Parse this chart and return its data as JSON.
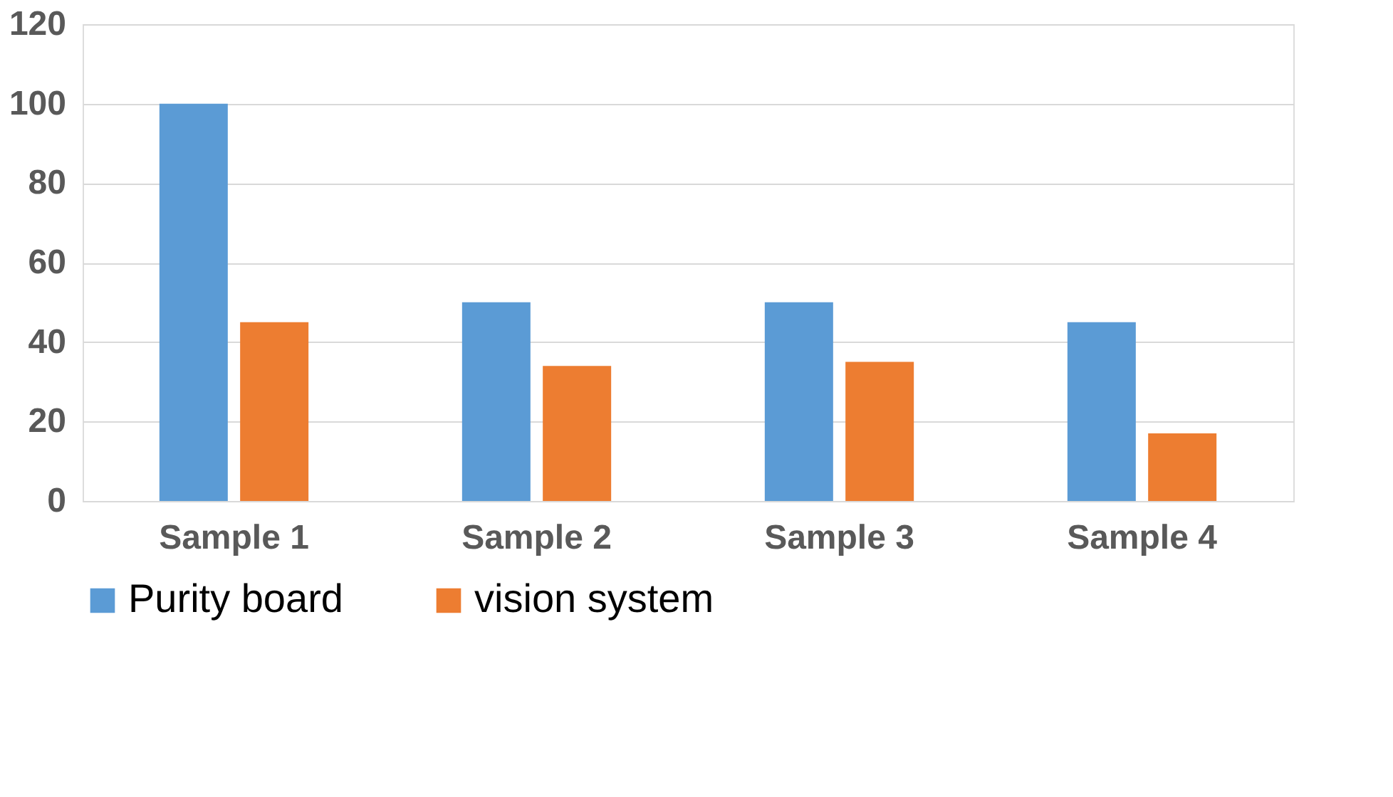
{
  "chart_data": {
    "type": "bar",
    "categories": [
      "Sample 1",
      "Sample 2",
      "Sample 3",
      "Sample 4"
    ],
    "series": [
      {
        "name": "Purity board",
        "color": "#5b9bd5",
        "values": [
          100,
          50,
          50,
          45
        ]
      },
      {
        "name": "vision system",
        "color": "#ed7d31",
        "values": [
          45,
          34,
          35,
          17
        ]
      }
    ],
    "ylim": [
      0,
      120
    ],
    "yticks": [
      0,
      20,
      40,
      60,
      80,
      100,
      120
    ],
    "grid": "y",
    "legend": "bottom"
  }
}
